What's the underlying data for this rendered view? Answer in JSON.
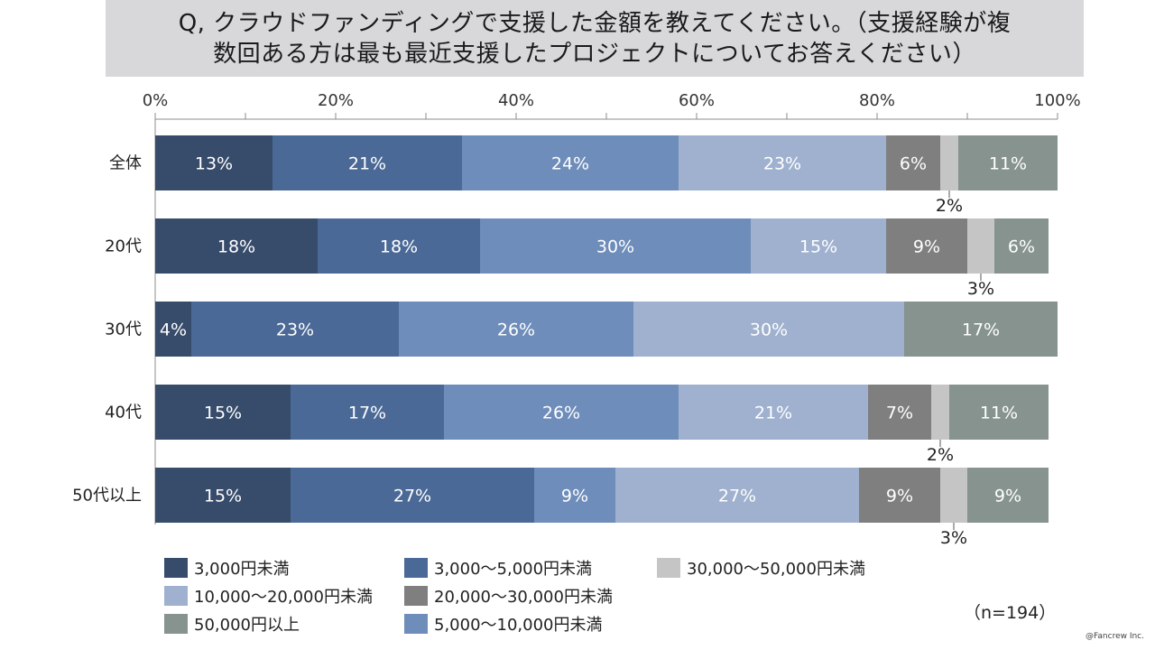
{
  "title": {
    "line1": "Q, クラウドファンディングで支援した金額を教えてください。（支援経験が複",
    "line2": "数回ある方は最も最近支援したプロジェクトについてお答えください）"
  },
  "n_label": "（n=194）",
  "copyright": "@Fancrew Inc.",
  "chart_data": {
    "type": "stacked-bar-horizontal",
    "title": "Q, クラウドファンディングで支援した金額を教えてください。（支援経験が複数回ある方は最も最近支援したプロジェクトについてお答えください）",
    "xlim": [
      0,
      100
    ],
    "x_ticks": [
      "0%",
      "20%",
      "40%",
      "60%",
      "80%",
      "100%"
    ],
    "categories": [
      "全体",
      "20代",
      "30代",
      "40代",
      "50代以上"
    ],
    "series": [
      {
        "name": "3,000円未満",
        "color": "#374b6b",
        "values": [
          13,
          18,
          4,
          15,
          15
        ]
      },
      {
        "name": "3,000～5,000円未満",
        "color": "#4b6996",
        "values": [
          21,
          18,
          23,
          17,
          27
        ]
      },
      {
        "name": "5,000～10,000円未満",
        "color": "#6e8dba",
        "values": [
          24,
          30,
          26,
          26,
          9
        ]
      },
      {
        "name": "10,000～20,000円未満",
        "color": "#9fb1cf",
        "values": [
          23,
          15,
          30,
          21,
          27
        ]
      },
      {
        "name": "20,000～30,000円未満",
        "color": "#7f7f7f",
        "values": [
          6,
          9,
          0,
          7,
          9
        ]
      },
      {
        "name": "30,000～50,000円未満",
        "color": "#c5c5c5",
        "values": [
          2,
          3,
          0,
          2,
          3
        ]
      },
      {
        "name": "50,000円以上",
        "color": "#87938f",
        "values": [
          11,
          6,
          17,
          11,
          9
        ]
      }
    ],
    "legend_position": "bottom",
    "legend_order": [
      0,
      3,
      6,
      1,
      4,
      2,
      5
    ]
  }
}
